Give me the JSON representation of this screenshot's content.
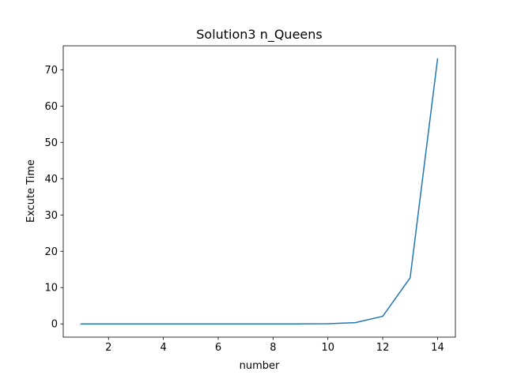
{
  "chart_data": {
    "type": "line",
    "title": "Solution3  n_Queens",
    "xlabel": "number",
    "ylabel": "Excute Time",
    "xlim": [
      0.35,
      14.65
    ],
    "ylim": [
      -3.65,
      76.6
    ],
    "xticks": [
      2,
      4,
      6,
      8,
      10,
      12,
      14
    ],
    "yticks": [
      0,
      10,
      20,
      30,
      40,
      50,
      60,
      70
    ],
    "grid": false,
    "series": [
      {
        "color": "#1f77b4",
        "x": [
          1,
          2,
          3,
          4,
          5,
          6,
          7,
          8,
          9,
          10,
          11,
          12,
          13,
          14
        ],
        "y": [
          0,
          0,
          0,
          0,
          0,
          0,
          0,
          0.001,
          0.005,
          0.05,
          0.35,
          2.1,
          12.7,
          73.0
        ]
      }
    ]
  }
}
